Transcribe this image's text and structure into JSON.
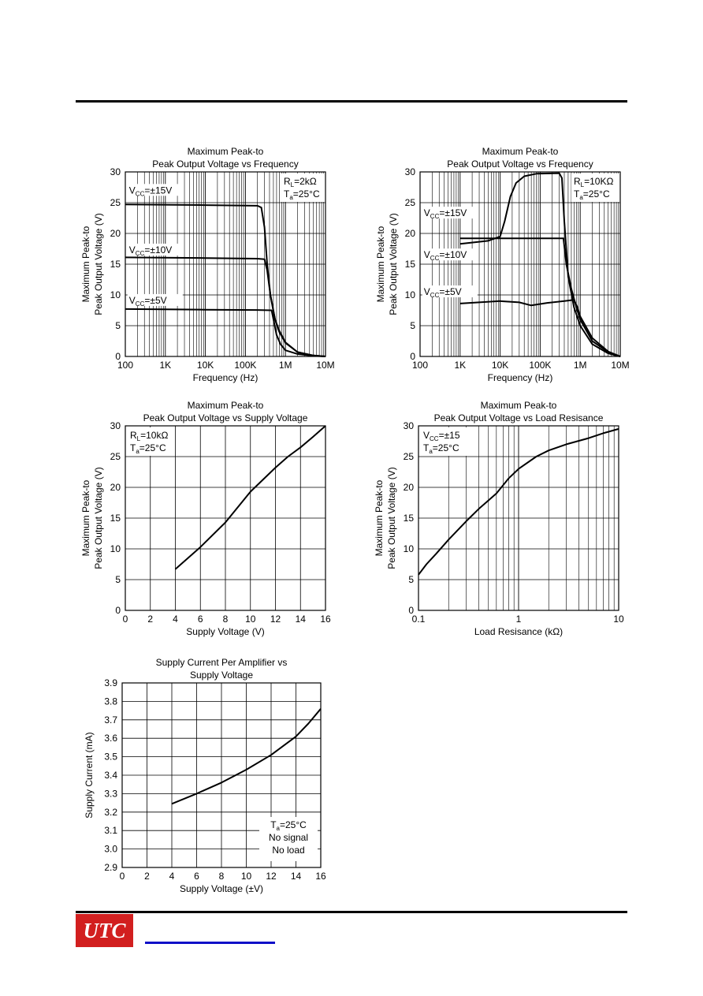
{
  "footer": {
    "logo_text": "UTC"
  },
  "chart_data": [
    {
      "type": "line",
      "title": [
        "Maximum Peak-to",
        "Peak Output Voltage vs Frequency"
      ],
      "xlabel": "Frequency (Hz)",
      "ylabel": [
        "Maximum Peak-to",
        "Peak Output Voltage (V)"
      ],
      "xscale": "log",
      "xlim": [
        100,
        10000000
      ],
      "ylim": [
        0,
        30
      ],
      "xticks": [
        100,
        1000,
        10000,
        100000,
        1000000,
        10000000
      ],
      "xticklabels": [
        "100",
        "1K",
        "10K",
        "100K",
        "1M",
        "10M"
      ],
      "yticks": [
        0,
        5,
        10,
        15,
        20,
        25,
        30
      ],
      "conditions": [
        {
          "base": "R",
          "sub": "L",
          "rest": "=2kΩ"
        },
        {
          "base": "T",
          "sub": "a",
          "rest": "=25°C"
        }
      ],
      "grid": true,
      "series": [
        {
          "name": "VCC=±15V",
          "label": {
            "base": "V",
            "sub": "CC",
            "rest": "=±15V"
          },
          "label_at": [
            130,
            26.5
          ],
          "points": [
            [
              100,
              24.7
            ],
            [
              10000,
              24.6
            ],
            [
              200000,
              24.5
            ],
            [
              250000,
              24.2
            ],
            [
              300000,
              21
            ],
            [
              350000,
              15
            ],
            [
              420000,
              10
            ],
            [
              550000,
              6
            ],
            [
              700000,
              4
            ],
            [
              1000000,
              2.2
            ],
            [
              2000000,
              0.7
            ],
            [
              5000000,
              0.15
            ],
            [
              10000000,
              0
            ]
          ]
        },
        {
          "name": "VCC=±10V",
          "label": {
            "base": "V",
            "sub": "CC",
            "rest": "=±10V"
          },
          "label_at": [
            130,
            16.8
          ],
          "points": [
            [
              100,
              16.1
            ],
            [
              10000,
              16
            ],
            [
              200000,
              15.9
            ],
            [
              300000,
              15.8
            ],
            [
              350000,
              14
            ],
            [
              420000,
              10
            ],
            [
              550000,
              6
            ],
            [
              700000,
              4.2
            ],
            [
              1000000,
              2.3
            ],
            [
              2000000,
              0.7
            ],
            [
              5000000,
              0.15
            ],
            [
              10000000,
              0
            ]
          ]
        },
        {
          "name": "VCC=±5V",
          "label": {
            "base": "V",
            "sub": "CC",
            "rest": "=±5V"
          },
          "label_at": [
            130,
            8.6
          ],
          "points": [
            [
              100,
              7.7
            ],
            [
              10000,
              7.6
            ],
            [
              200000,
              7.55
            ],
            [
              450000,
              7.5
            ],
            [
              520000,
              5.5
            ],
            [
              600000,
              3.5
            ],
            [
              750000,
              2
            ],
            [
              1000000,
              1
            ],
            [
              2000000,
              0.4
            ],
            [
              5000000,
              0.1
            ],
            [
              10000000,
              0
            ]
          ]
        }
      ]
    },
    {
      "type": "line",
      "title": [
        "Maximum Peak-to",
        "Peak Output Voltage vs Frequency"
      ],
      "xlabel": "Frequency (Hz)",
      "ylabel": [
        "Maximum Peak-to",
        "Peak Output Voltage (V)"
      ],
      "xscale": "log",
      "xlim": [
        100,
        10000000
      ],
      "ylim": [
        0,
        30
      ],
      "xticks": [
        100,
        1000,
        10000,
        100000,
        1000000,
        10000000
      ],
      "xticklabels": [
        "100",
        "1K",
        "10K",
        "100K",
        "1M",
        "10M"
      ],
      "yticks": [
        0,
        5,
        10,
        15,
        20,
        25,
        30
      ],
      "conditions": [
        {
          "base": "R",
          "sub": "L",
          "rest": "=10KΩ"
        },
        {
          "base": "T",
          "sub": "a",
          "rest": "=25°C"
        }
      ],
      "grid": true,
      "series": [
        {
          "name": "VCC=±15V",
          "label": {
            "base": "V",
            "sub": "CC",
            "rest": "=±15V"
          },
          "label_at": [
            130,
            22.8
          ],
          "points": [
            [
              1000,
              18.3
            ],
            [
              5000,
              18.8
            ],
            [
              10000,
              19.5
            ],
            [
              13000,
              22
            ],
            [
              18000,
              26
            ],
            [
              25000,
              28.2
            ],
            [
              40000,
              29.3
            ],
            [
              80000,
              29.7
            ],
            [
              300000,
              29.8
            ],
            [
              350000,
              29
            ],
            [
              400000,
              22
            ],
            [
              500000,
              13
            ],
            [
              700000,
              8
            ],
            [
              1000000,
              5
            ],
            [
              2000000,
              2
            ],
            [
              5000000,
              0.5
            ],
            [
              10000000,
              0
            ]
          ]
        },
        {
          "name": "VCC=±10V",
          "label": {
            "base": "V",
            "sub": "CC",
            "rest": "=±10V"
          },
          "label_at": [
            130,
            16.0
          ],
          "points": [
            [
              1000,
              19.2
            ],
            [
              10000,
              19.2
            ],
            [
              100000,
              19.2
            ],
            [
              380000,
              19.2
            ],
            [
              450000,
              15
            ],
            [
              600000,
              11
            ],
            [
              800000,
              8
            ],
            [
              1000000,
              6
            ],
            [
              2000000,
              2.5
            ],
            [
              5000000,
              0.7
            ],
            [
              10000000,
              0
            ]
          ]
        },
        {
          "name": "VCC=±5V",
          "label": {
            "base": "V",
            "sub": "CC",
            "rest": "=±5V"
          },
          "label_at": [
            130,
            10.0
          ],
          "points": [
            [
              1000,
              8.6
            ],
            [
              3000,
              8.8
            ],
            [
              10000,
              9
            ],
            [
              30000,
              8.8
            ],
            [
              60000,
              8.3
            ],
            [
              150000,
              8.7
            ],
            [
              400000,
              9
            ],
            [
              700000,
              9.2
            ],
            [
              850000,
              8
            ],
            [
              1000000,
              6.5
            ],
            [
              2000000,
              3
            ],
            [
              5000000,
              0.8
            ],
            [
              10000000,
              0
            ]
          ]
        }
      ]
    },
    {
      "type": "line",
      "title": [
        "Maximum Peak-to",
        "Peak Output Voltage vs Supply Voltage"
      ],
      "xlabel": "Supply Voltage (V)",
      "ylabel": [
        "Maximum Peak-to",
        "Peak Output Voltage (V)"
      ],
      "xscale": "linear",
      "xlim": [
        0,
        16
      ],
      "ylim": [
        0,
        30
      ],
      "xticks": [
        0,
        2,
        4,
        6,
        8,
        10,
        12,
        14,
        16
      ],
      "xticklabels": [
        "0",
        "2",
        "4",
        "6",
        "8",
        "10",
        "12",
        "14",
        "16"
      ],
      "yticks": [
        0,
        5,
        10,
        15,
        20,
        25,
        30
      ],
      "conditions": [
        {
          "base": "R",
          "sub": "L",
          "rest": "=10kΩ"
        },
        {
          "base": "T",
          "sub": "a",
          "rest": "=25°C"
        }
      ],
      "grid": true,
      "series": [
        {
          "name": "",
          "points": [
            [
              4,
              6.7
            ],
            [
              6,
              10.3
            ],
            [
              8,
              14.3
            ],
            [
              10,
              19.3
            ],
            [
              12,
              23.2
            ],
            [
              13,
              25
            ],
            [
              14,
              26.5
            ],
            [
              15,
              28.2
            ],
            [
              16,
              30
            ]
          ]
        }
      ]
    },
    {
      "type": "line",
      "title": [
        "Maximum Peak-to",
        "Peak Output Voltage vs Load Resisance"
      ],
      "xlabel": "Load Resisance (kΩ)",
      "ylabel": [
        "Maximum Peak-to",
        "Peak Output Voltage (V)"
      ],
      "xscale": "log",
      "xlim": [
        0.1,
        10
      ],
      "ylim": [
        0,
        30
      ],
      "xticks": [
        0.1,
        1,
        10
      ],
      "xticklabels": [
        "0.1",
        "1",
        "10"
      ],
      "yticks": [
        0,
        5,
        10,
        15,
        20,
        25,
        30
      ],
      "conditions": [
        {
          "base": "V",
          "sub": "CC",
          "rest": "=±15"
        },
        {
          "base": "T",
          "sub": "a",
          "rest": "=25°C"
        }
      ],
      "grid": true,
      "series": [
        {
          "name": "",
          "points": [
            [
              0.1,
              5.8
            ],
            [
              0.12,
              7.5
            ],
            [
              0.15,
              9.2
            ],
            [
              0.2,
              11.5
            ],
            [
              0.3,
              14.5
            ],
            [
              0.4,
              16.5
            ],
            [
              0.6,
              19
            ],
            [
              0.8,
              21.5
            ],
            [
              1,
              23
            ],
            [
              1.5,
              25
            ],
            [
              2,
              26
            ],
            [
              3,
              27
            ],
            [
              5,
              28
            ],
            [
              7,
              28.8
            ],
            [
              10,
              29.5
            ]
          ]
        }
      ]
    },
    {
      "type": "line",
      "title": [
        "Supply Current Per Amplifier vs",
        "Supply Voltage"
      ],
      "xlabel": "Supply Voltage (±V)",
      "ylabel": [
        "Supply Current (mA)"
      ],
      "xscale": "linear",
      "xlim": [
        0,
        16
      ],
      "ylim": [
        2.9,
        3.9
      ],
      "xticks": [
        0,
        2,
        4,
        6,
        8,
        10,
        12,
        14,
        16
      ],
      "xticklabels": [
        "0",
        "2",
        "4",
        "6",
        "8",
        "10",
        "12",
        "14",
        "16"
      ],
      "yticks": [
        2.9,
        3.0,
        3.1,
        3.2,
        3.3,
        3.4,
        3.5,
        3.6,
        3.7,
        3.8,
        3.9
      ],
      "yticklabels": [
        "2.9",
        "3.0",
        "3.1",
        "3.2",
        "3.3",
        "3.4",
        "3.5",
        "3.6",
        "3.7",
        "3.8",
        "3.9"
      ],
      "conditions": [
        {
          "base": "T",
          "sub": "a",
          "rest": "=25°C"
        },
        {
          "base": "No signal",
          "sub": "",
          "rest": ""
        },
        {
          "base": "No load",
          "sub": "",
          "rest": ""
        }
      ],
      "conditions_position": "bottom-right",
      "grid": true,
      "series": [
        {
          "name": "",
          "points": [
            [
              4,
              3.245
            ],
            [
              6,
              3.3
            ],
            [
              8,
              3.36
            ],
            [
              10,
              3.43
            ],
            [
              12,
              3.51
            ],
            [
              14,
              3.61
            ],
            [
              15,
              3.68
            ],
            [
              16,
              3.76
            ]
          ]
        }
      ]
    }
  ]
}
